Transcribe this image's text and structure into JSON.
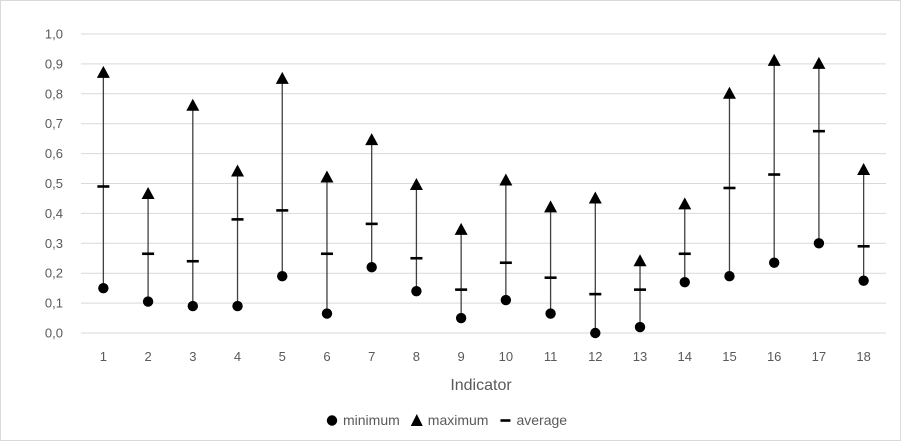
{
  "chart_data": {
    "type": "scatter",
    "title": "",
    "xlabel": "Indicator",
    "ylabel": "",
    "ylim": [
      0,
      1.0
    ],
    "ytick_step": 0.1,
    "ytick_labels": [
      "0,0",
      "0,1",
      "0,2",
      "0,3",
      "0,4",
      "0,5",
      "0,6",
      "0,7",
      "0,8",
      "0,9",
      "1,0"
    ],
    "categories": [
      "1",
      "2",
      "3",
      "4",
      "5",
      "6",
      "7",
      "8",
      "9",
      "10",
      "11",
      "12",
      "13",
      "14",
      "15",
      "16",
      "17",
      "18"
    ],
    "grid": "horizontal",
    "legend_position": "bottom",
    "series": [
      {
        "name": "minimum",
        "marker": "circle",
        "color": "#000000",
        "values": [
          0.15,
          0.105,
          0.09,
          0.09,
          0.19,
          0.065,
          0.22,
          0.14,
          0.05,
          0.11,
          0.065,
          0.0,
          0.02,
          0.17,
          0.19,
          0.235,
          0.3,
          0.175
        ]
      },
      {
        "name": "maximum",
        "marker": "triangle",
        "color": "#000000",
        "values": [
          0.87,
          0.465,
          0.76,
          0.54,
          0.85,
          0.52,
          0.645,
          0.495,
          0.345,
          0.51,
          0.42,
          0.45,
          0.24,
          0.43,
          0.8,
          0.91,
          0.9,
          0.545
        ]
      },
      {
        "name": "average",
        "marker": "dash",
        "color": "#000000",
        "values": [
          0.49,
          0.265,
          0.24,
          0.38,
          0.41,
          0.265,
          0.365,
          0.25,
          0.145,
          0.235,
          0.185,
          0.13,
          0.145,
          0.265,
          0.485,
          0.53,
          0.675,
          0.29
        ]
      }
    ],
    "colors": {
      "grid": "#d9d9d9",
      "range_line": "#404040",
      "marker": "#000000",
      "text": "#595959"
    }
  }
}
